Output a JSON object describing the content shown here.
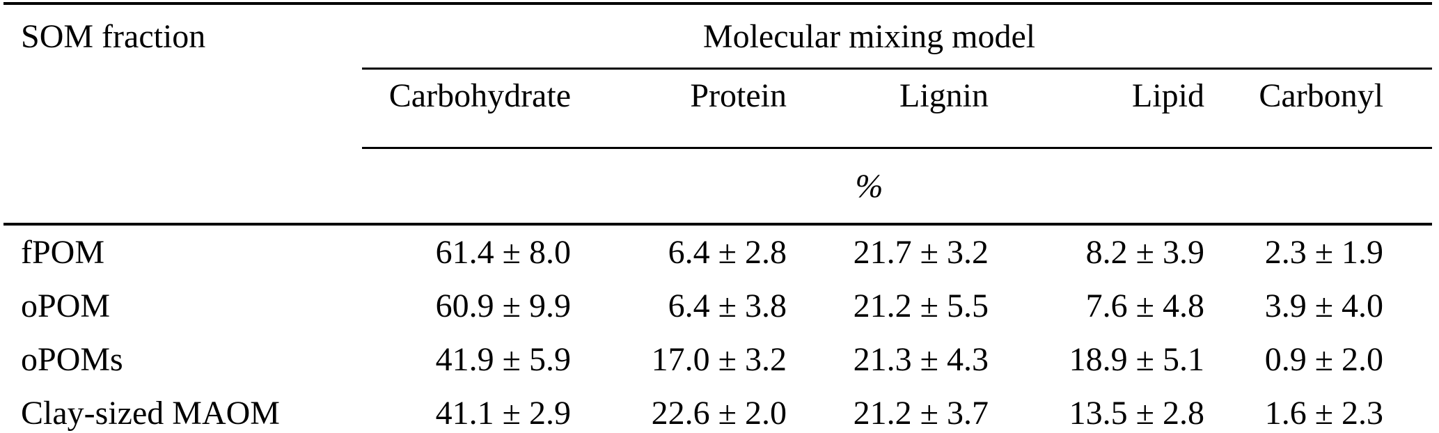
{
  "table": {
    "corner_header": "SOM fraction",
    "spanner_header": "Molecular mixing model",
    "columns": [
      "Carbohydrate",
      "Protein",
      "Lignin",
      "Lipid",
      "Carbonyl"
    ],
    "unit_label": "%",
    "rows": [
      {
        "label": "fPOM",
        "values": [
          "61.4 ± 8.0",
          "6.4 ± 2.8",
          "21.7 ± 3.2",
          "8.2 ± 3.9",
          "2.3 ± 1.9"
        ]
      },
      {
        "label": "oPOM",
        "values": [
          "60.9 ± 9.9",
          "6.4 ± 3.8",
          "21.2 ± 5.5",
          "7.6 ± 4.8",
          "3.9 ± 4.0"
        ]
      },
      {
        "label": "oPOMs",
        "values": [
          "41.9 ± 5.9",
          "17.0 ± 3.2",
          "21.3 ± 4.3",
          "18.9 ± 5.1",
          "0.9 ± 2.0"
        ]
      },
      {
        "label": "Clay-sized MAOM",
        "values": [
          "41.1 ± 2.9",
          "22.6 ± 2.0",
          "21.2 ± 3.7",
          "13.5 ± 2.8",
          "1.6 ± 2.3"
        ]
      }
    ],
    "colors": {
      "text": "#000000",
      "background": "#ffffff",
      "rule": "#000000"
    }
  },
  "chart_data": {
    "type": "table",
    "row_header": "SOM fraction",
    "spanner": "Molecular mixing model",
    "unit": "%",
    "categories": [
      "fPOM",
      "oPOM",
      "oPOMs",
      "Clay-sized MAOM"
    ],
    "series": [
      {
        "name": "Carbohydrate",
        "values": [
          61.4,
          60.9,
          41.9,
          41.1
        ],
        "sd": [
          8.0,
          9.9,
          5.9,
          2.9
        ]
      },
      {
        "name": "Protein",
        "values": [
          6.4,
          6.4,
          17.0,
          22.6
        ],
        "sd": [
          2.8,
          3.8,
          3.2,
          2.0
        ]
      },
      {
        "name": "Lignin",
        "values": [
          21.7,
          21.2,
          21.3,
          21.2
        ],
        "sd": [
          3.2,
          5.5,
          4.3,
          3.7
        ]
      },
      {
        "name": "Lipid",
        "values": [
          8.2,
          7.6,
          18.9,
          13.5
        ],
        "sd": [
          3.9,
          4.8,
          5.1,
          2.8
        ]
      },
      {
        "name": "Carbonyl",
        "values": [
          2.3,
          3.9,
          0.9,
          1.6
        ],
        "sd": [
          1.9,
          4.0,
          2.0,
          2.3
        ]
      }
    ]
  }
}
